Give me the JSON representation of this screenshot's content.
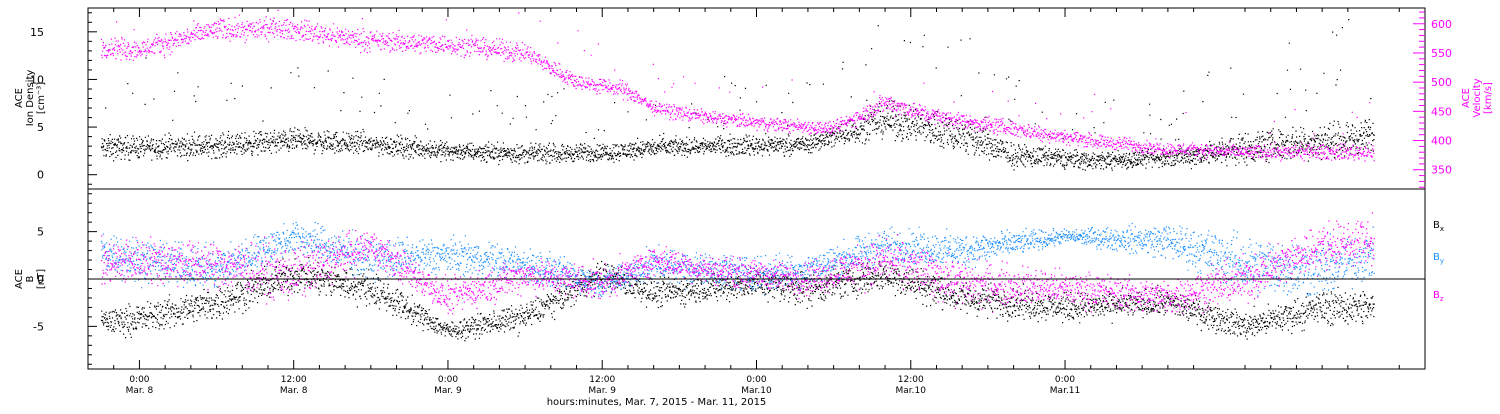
{
  "chart_data": [
    {
      "type": "scatter",
      "panel": "top",
      "ylabel_left": [
        "ACE",
        "Ion Density",
        "[cm⁻³]"
      ],
      "ylabel_right": [
        "ACE",
        "Velocity",
        "[km/s]"
      ],
      "ylim_left": [
        -1.5,
        17.5
      ],
      "yticks_left": [
        "0",
        "5",
        "10",
        "15"
      ],
      "ylim_right": [
        317,
        627
      ],
      "yticks_right": [
        "350",
        "400",
        "450",
        "500",
        "550",
        "600"
      ],
      "series": [
        {
          "axis": "left",
          "color": "#000000",
          "x": [
            -3,
            0,
            6,
            12,
            18,
            24,
            30,
            36,
            40,
            44,
            48,
            52,
            58,
            64,
            68,
            74,
            80,
            86,
            96
          ],
          "y": [
            2.8,
            2.9,
            3.0,
            3.6,
            3.2,
            2.5,
            2.2,
            2.3,
            2.8,
            3.0,
            3.1,
            3.2,
            5.8,
            4.2,
            2.0,
            1.5,
            1.7,
            2.8,
            4.0
          ],
          "spread": [
            1.1,
            1.0,
            1.0,
            1.0,
            1.0,
            0.8,
            0.8,
            0.8,
            0.8,
            0.8,
            0.9,
            0.8,
            1.5,
            1.8,
            1.0,
            0.8,
            0.8,
            1.4,
            1.5
          ]
        },
        {
          "axis": "right",
          "color": "#ff00ff",
          "x": [
            -3,
            0,
            6,
            12,
            18,
            24,
            30,
            34,
            38,
            40,
            44,
            48,
            54,
            58,
            62,
            68,
            74,
            80,
            86,
            96
          ],
          "y": [
            560,
            555,
            590,
            590,
            570,
            565,
            550,
            500,
            485,
            455,
            440,
            430,
            420,
            465,
            440,
            420,
            400,
            385,
            380,
            380
          ],
          "spread": [
            16,
            15,
            16,
            15,
            15,
            14,
            14,
            12,
            12,
            10,
            10,
            10,
            10,
            14,
            12,
            12,
            10,
            10,
            10,
            12
          ]
        }
      ]
    },
    {
      "type": "scatter",
      "panel": "bottom",
      "ylabel": [
        "ACE",
        "B",
        "[nT]"
      ],
      "ylim": [
        -9.5,
        9.5
      ],
      "yticks": [
        "-5",
        "0",
        "5"
      ],
      "zero_line": true,
      "series": [
        {
          "name": "B_x",
          "label_main": "B",
          "label_sub": "x",
          "color": "#000000",
          "x": [
            -3,
            0,
            6,
            12,
            18,
            24,
            30,
            36,
            40,
            44,
            48,
            52,
            58,
            64,
            72,
            80,
            86,
            92,
            96
          ],
          "y": [
            -4.5,
            -4.2,
            -2.5,
            0.5,
            -1.0,
            -5.5,
            -4.0,
            0.5,
            -1.5,
            -1.0,
            -0.5,
            -1.0,
            0.5,
            -2.0,
            -3.0,
            -2.5,
            -5.0,
            -3.0,
            -3.0
          ],
          "spread": [
            1.2,
            1.3,
            1.5,
            1.5,
            1.5,
            0.8,
            1.2,
            1.2,
            1.2,
            1.2,
            1.3,
            1.5,
            1.5,
            1.5,
            1.2,
            1.2,
            1.2,
            1.5,
            1.5
          ]
        },
        {
          "name": "B_y",
          "label_main": "B",
          "label_sub": "y",
          "color": "#1e90ff",
          "x": [
            -3,
            0,
            6,
            12,
            18,
            24,
            30,
            36,
            40,
            44,
            48,
            52,
            58,
            64,
            72,
            80,
            86,
            92,
            96
          ],
          "y": [
            3.0,
            2.0,
            1.0,
            4.5,
            2.0,
            2.5,
            1.5,
            -0.5,
            1.5,
            1.0,
            0.5,
            1.0,
            3.5,
            3.0,
            4.5,
            4.0,
            1.5,
            1.0,
            2.5
          ],
          "spread": [
            2.0,
            1.8,
            1.8,
            1.5,
            1.8,
            1.5,
            1.5,
            1.2,
            1.5,
            1.5,
            1.5,
            1.5,
            1.5,
            1.5,
            0.6,
            1.5,
            2.5,
            2.5,
            2.0
          ]
        },
        {
          "name": "B_z",
          "label_main": "B",
          "label_sub": "z",
          "color": "#ff00ff",
          "x": [
            -3,
            0,
            6,
            12,
            18,
            24,
            30,
            36,
            40,
            44,
            48,
            52,
            58,
            64,
            72,
            80,
            86,
            92,
            96
          ],
          "y": [
            1.5,
            2.0,
            1.5,
            0.5,
            3.5,
            -2.0,
            0.5,
            -0.5,
            2.0,
            1.0,
            0.5,
            0.0,
            2.0,
            -0.5,
            -1.0,
            -2.0,
            0.0,
            3.5,
            4.0
          ],
          "spread": [
            2.0,
            2.0,
            2.0,
            2.5,
            1.5,
            1.5,
            1.5,
            1.5,
            1.2,
            1.2,
            1.2,
            1.5,
            2.0,
            2.0,
            1.5,
            1.5,
            2.0,
            2.0,
            2.0
          ]
        }
      ]
    }
  ],
  "x_axis": {
    "xlim": [
      -4,
      100
    ],
    "ticks": [
      {
        "x": 0,
        "time": "0:00",
        "date": "Mar. 8"
      },
      {
        "x": 12,
        "time": "12:00",
        "date": "Mar. 8"
      },
      {
        "x": 24,
        "time": "0:00",
        "date": "Mar. 9"
      },
      {
        "x": 36,
        "time": "12:00",
        "date": "Mar. 9"
      },
      {
        "x": 48,
        "time": "0:00",
        "date": "Mar.10"
      },
      {
        "x": 60,
        "time": "12:00",
        "date": "Mar.10"
      },
      {
        "x": 72,
        "time": "0:00",
        "date": "Mar.11"
      }
    ],
    "title": "hours:minutes, Mar.  7, 2015 - Mar. 11, 2015"
  }
}
